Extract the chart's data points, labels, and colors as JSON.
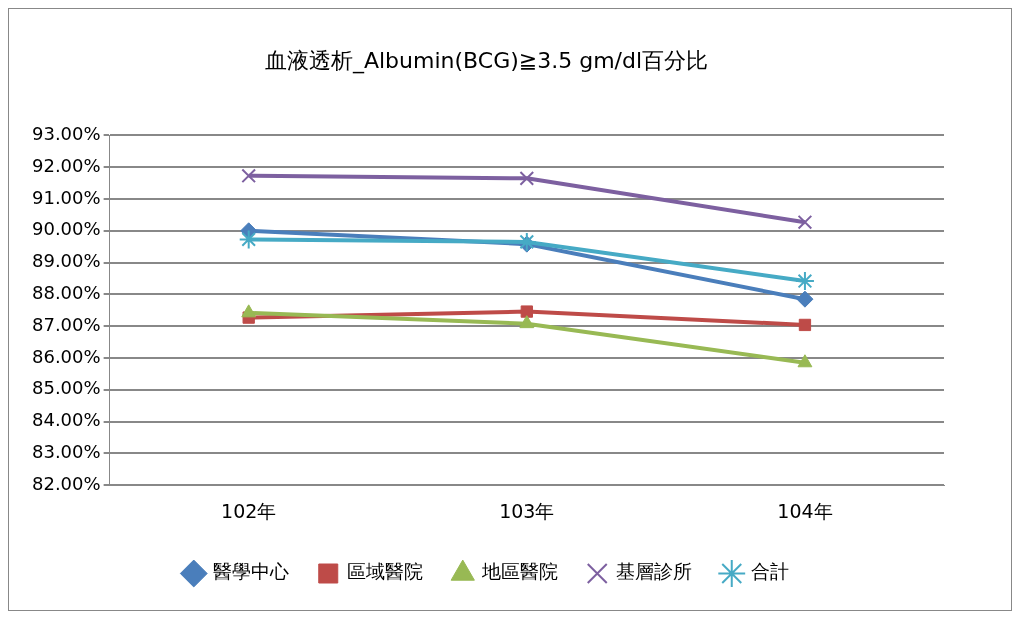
{
  "chart_data": {
    "type": "line",
    "title": "血液透析_Albumin(BCG)≧3.5 gm/dl百分比",
    "categories": [
      "102年",
      "103年",
      "104年"
    ],
    "series": [
      {
        "name": "醫學中心",
        "color": "#4a7ebb",
        "marker": "diamond",
        "values": [
          90.0,
          89.58,
          87.85
        ]
      },
      {
        "name": "區域醫院",
        "color": "#be4b48",
        "marker": "square",
        "values": [
          87.27,
          87.46,
          87.04
        ]
      },
      {
        "name": "地區醫院",
        "color": "#98b954",
        "marker": "triangle",
        "values": [
          87.42,
          87.08,
          85.85
        ]
      },
      {
        "name": "基層診所",
        "color": "#7d60a0",
        "marker": "cross",
        "values": [
          91.73,
          91.65,
          90.27
        ]
      },
      {
        "name": "合計",
        "color": "#46aac5",
        "marker": "cross",
        "values": [
          89.73,
          89.65,
          88.42
        ]
      }
    ],
    "ylim": [
      82,
      93
    ],
    "yticks": [
      {
        "value": 82,
        "label": "82.00%"
      },
      {
        "value": 83,
        "label": "83.00%"
      },
      {
        "value": 84,
        "label": "84.00%"
      },
      {
        "value": 85,
        "label": "85.00%"
      },
      {
        "value": 86,
        "label": "86.00%"
      },
      {
        "value": 87,
        "label": "87.00%"
      },
      {
        "value": 88,
        "label": "88.00%"
      },
      {
        "value": 89,
        "label": "89.00%"
      },
      {
        "value": 90,
        "label": "90.00%"
      },
      {
        "value": 91,
        "label": "91.00%"
      },
      {
        "value": 92,
        "label": "92.00%"
      },
      {
        "value": 93,
        "label": "93.00%"
      }
    ],
    "grid": "y",
    "legend": "bottom",
    "line_style": "solid"
  }
}
